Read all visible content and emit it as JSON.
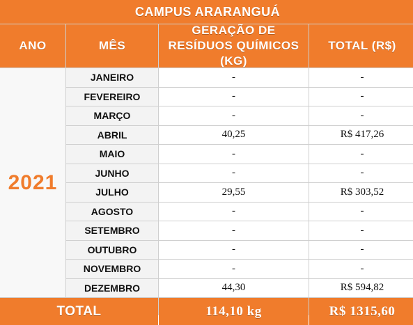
{
  "title": "CAMPUS ARARANGUÁ",
  "headers": {
    "ano": "ANO",
    "mes": "MÊS",
    "geracao_line1": "GERAÇÃO DE",
    "geracao_line2": "RESÍDUOS QUÍMICOS (KG)",
    "total": "TOTAL (R$)"
  },
  "year": "2021",
  "rows": [
    {
      "month": "JANEIRO",
      "kg": "-",
      "total": "-"
    },
    {
      "month": "FEVEREIRO",
      "kg": "-",
      "total": "-"
    },
    {
      "month": "MARÇO",
      "kg": "-",
      "total": "-"
    },
    {
      "month": "ABRIL",
      "kg": "40,25",
      "total": "R$  417,26"
    },
    {
      "month": "MAIO",
      "kg": "-",
      "total": "-"
    },
    {
      "month": "JUNHO",
      "kg": "-",
      "total": "-"
    },
    {
      "month": "JULHO",
      "kg": "29,55",
      "total": "R$  303,52"
    },
    {
      "month": "AGOSTO",
      "kg": "-",
      "total": "-"
    },
    {
      "month": "SETEMBRO",
      "kg": "-",
      "total": "-"
    },
    {
      "month": "OUTUBRO",
      "kg": "-",
      "total": "-"
    },
    {
      "month": "NOVEMBRO",
      "kg": "-",
      "total": "-"
    },
    {
      "month": "DEZEMBRO",
      "kg": "44,30",
      "total": "R$  594,82"
    }
  ],
  "footer": {
    "label": "TOTAL",
    "kg": "114,10 kg",
    "total": "R$ 1315,60"
  },
  "colors": {
    "accent": "#f07c2c",
    "header_text": "#ffffff"
  }
}
